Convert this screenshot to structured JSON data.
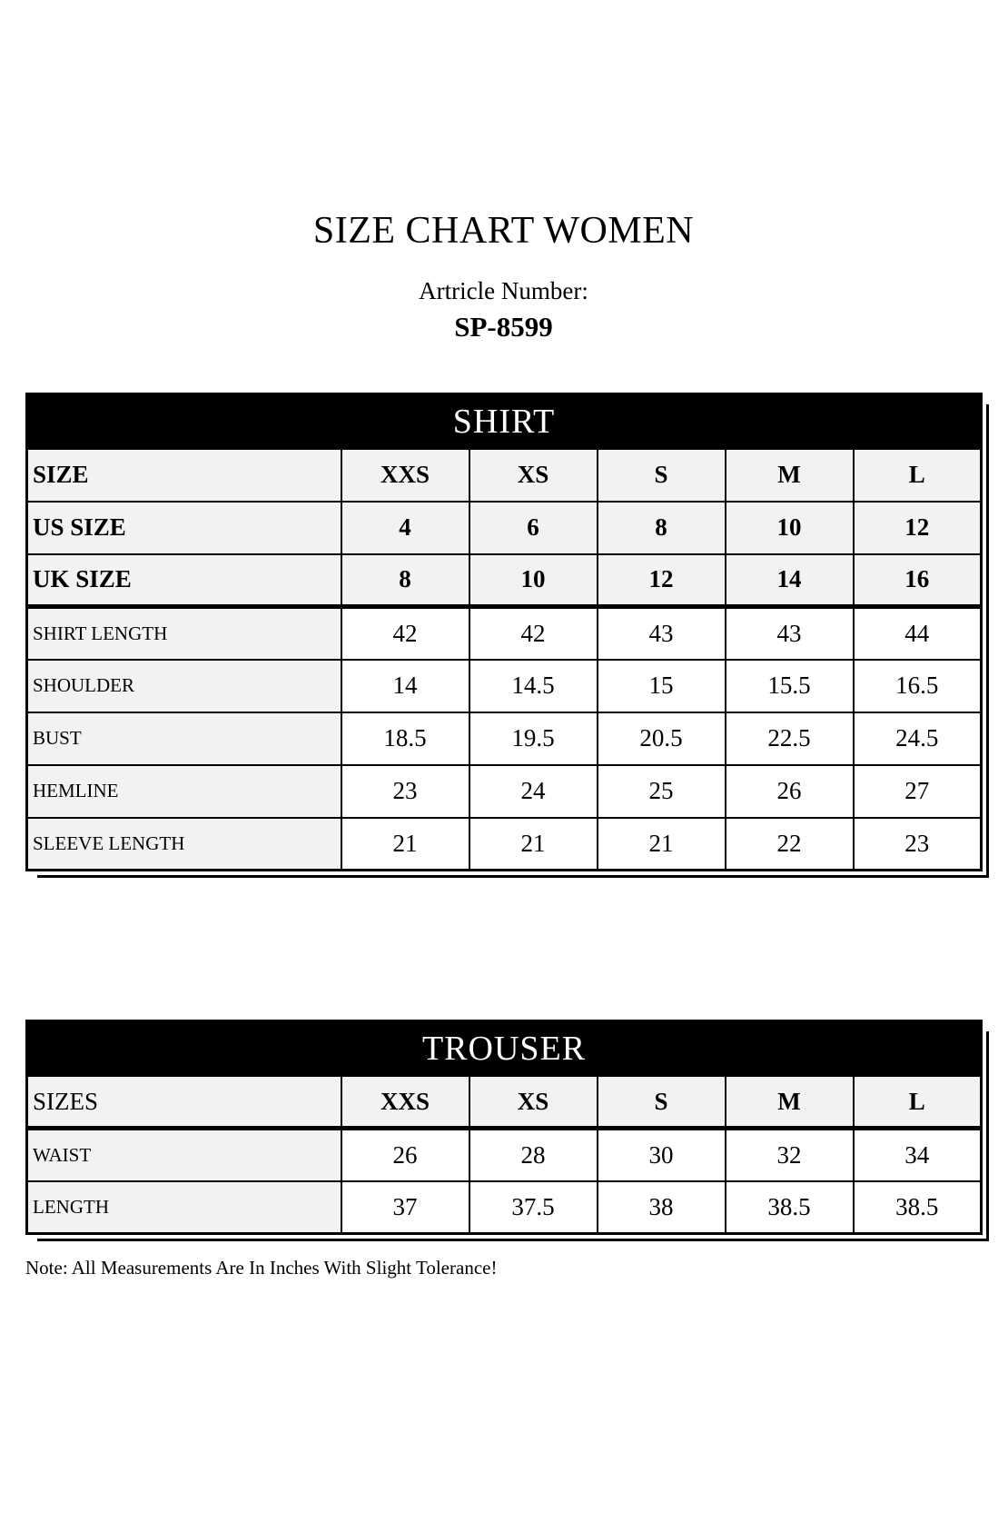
{
  "page": {
    "title": "SIZE CHART WOMEN",
    "article_label": "Artricle Number:",
    "article_number": "SP-8599",
    "note": "Note: All Measurements Are In Inches With Slight Tolerance!"
  },
  "colors": {
    "band_background": "#000000",
    "band_text": "#ffffff",
    "header_row_background": "#f2f2f2",
    "data_cell_background": "#ffffff",
    "border": "#000000"
  },
  "shirt": {
    "title": "SHIRT",
    "header_rows": [
      {
        "label": "SIZE",
        "values": [
          "XXS",
          "XS",
          "S",
          "M",
          "L"
        ]
      },
      {
        "label": "US SIZE",
        "values": [
          "4",
          "6",
          "8",
          "10",
          "12"
        ]
      },
      {
        "label": "UK SIZE",
        "values": [
          "8",
          "10",
          "12",
          "14",
          "16"
        ]
      }
    ],
    "body_rows": [
      {
        "label": "SHIRT LENGTH",
        "values": [
          "42",
          "42",
          "43",
          "43",
          "44"
        ]
      },
      {
        "label": "SHOULDER",
        "values": [
          "14",
          "14.5",
          "15",
          "15.5",
          "16.5"
        ]
      },
      {
        "label": "BUST",
        "values": [
          "18.5",
          "19.5",
          "20.5",
          "22.5",
          "24.5"
        ]
      },
      {
        "label": "HEMLINE",
        "values": [
          "23",
          "24",
          "25",
          "26",
          "27"
        ]
      },
      {
        "label": "SLEEVE LENGTH",
        "values": [
          "21",
          "21",
          "21",
          "22",
          "23"
        ]
      }
    ]
  },
  "trouser": {
    "title": "TROUSER",
    "header_rows": [
      {
        "label": "SIZES",
        "values": [
          "XXS",
          "XS",
          "S",
          "M",
          "L"
        ]
      }
    ],
    "body_rows": [
      {
        "label": "WAIST",
        "values": [
          "26",
          "28",
          "30",
          "32",
          "34"
        ]
      },
      {
        "label": "LENGTH",
        "values": [
          "37",
          "37.5",
          "38",
          "38.5",
          "38.5"
        ]
      }
    ]
  }
}
